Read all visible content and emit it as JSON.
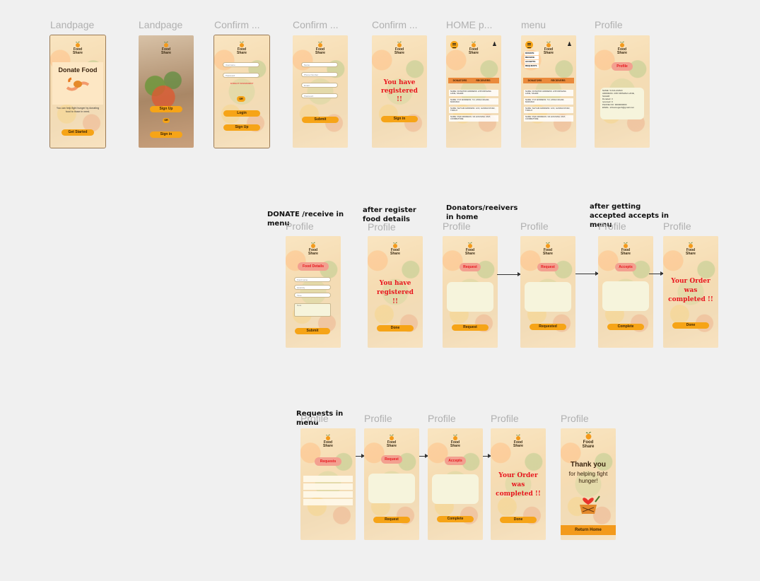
{
  "labels": {
    "f1": "Landpage",
    "f2": "Landpage",
    "f3": "Confirm ...",
    "f4": "Confirm ...",
    "f5": "Confirm ...",
    "f6": "HOME p...",
    "f7": "menu",
    "f8": "Profile",
    "r2": "Profile",
    "r3": "Profile"
  },
  "notes": {
    "donate_receive": "DONATE /receive in menu",
    "after_register": "after register food details",
    "donators_home": "Donators/reeivers in home",
    "after_accepted": "after getting accepted accepts in menu",
    "requests_menu": "Requests in menu"
  },
  "logo": {
    "line1": "Food",
    "line2": "Share"
  },
  "landing": {
    "title": "Donate Food",
    "tagline": "You can help fight hunger by donating food to those in need.",
    "cta": "Get Started"
  },
  "landing2": {
    "signup": "Sign Up",
    "or": "OR",
    "signin": "Sign in"
  },
  "login": {
    "username_ph": "Username",
    "password_ph": "Password",
    "forgot": "FORGOT PASSWORD?",
    "or": "OR",
    "login": "Login",
    "signup": "Sign Up"
  },
  "register": {
    "fields": [
      "Name",
      "Phone Number",
      "Email",
      "Password"
    ],
    "submit": "Submit"
  },
  "registered": {
    "msg": "You have registered !!",
    "signin": "Sign in",
    "done": "Done"
  },
  "home": {
    "tab_donators": "DONATORS",
    "tab_receivers": "RECEIVERS",
    "entries": [
      "NAME: DONATOR  ADDRESS: 2/45 KRISHNA LANE, SALEM",
      "NAME: XYZ  ADDRESS: 7/2, ANNA NAGAR, MADURAI",
      "NAME: SHIYAM  ADDRESS: 12/3, GANDHI ROAD, TRICHY",
      "NAME: PQR  ADDRESS: 3/4 HOUSING UNIT, COIMBATORE"
    ]
  },
  "menu": {
    "items": [
      "DONATE",
      "RECEIVE",
      "ACCEPTS",
      "REQUESTS"
    ]
  },
  "profile": {
    "title": "Profile",
    "details": [
      {
        "k": "NAME:",
        "v": "S.KALAIVANI"
      },
      {
        "k": "ADDRESS:",
        "v": "2/45 KRISHNA LANE, SALEM"
      },
      {
        "k": "Donated:",
        "v": "3"
      },
      {
        "k": "received:",
        "v": "0"
      },
      {
        "k": "PHONE NO:",
        "v": "9000000000"
      },
      {
        "k": "EMAIL:",
        "v": "shivamugesh@gmail.com"
      }
    ]
  },
  "food": {
    "title": "Food Details",
    "fields": [
      "Food name",
      "Quantity",
      "Time",
      "Note"
    ],
    "submit": "Submit"
  },
  "request": {
    "pill": "Request",
    "btn": "Request",
    "btn_done": "Requested"
  },
  "accepts": {
    "pill": "Accepts",
    "btn": "Complete"
  },
  "order": {
    "msg": "Your Order was completed !!",
    "btn": "Done"
  },
  "requests": {
    "pill": "Requests"
  },
  "thanks": {
    "line1": "Thank you",
    "line2": "for helping fight hunger!",
    "btn": "Return Home"
  }
}
